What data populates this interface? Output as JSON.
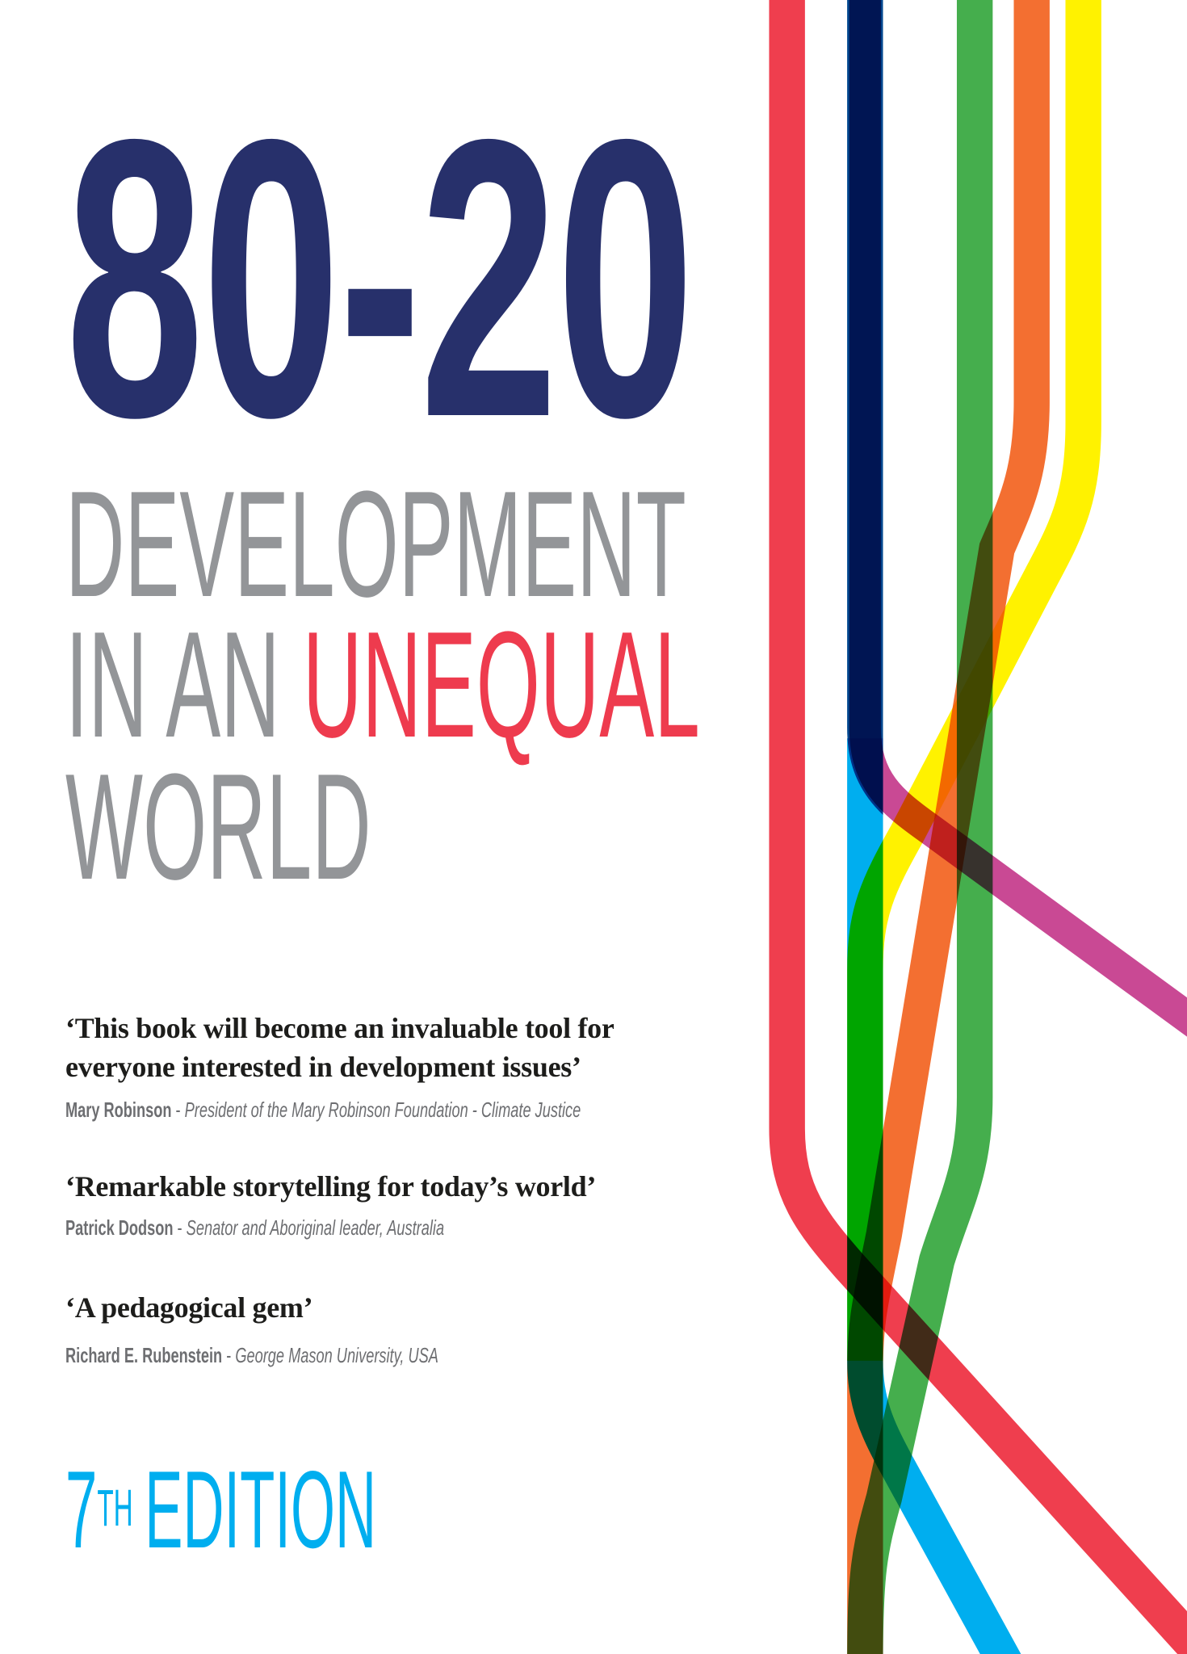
{
  "cover": {
    "title": "80-20",
    "subtitle_line1": "DEVELOPMENT",
    "subtitle_line2_a": "IN AN ",
    "subtitle_line2_b": "UNEQUAL",
    "subtitle_line3": "WORLD",
    "quotes": [
      {
        "lines": [
          "‘This book will become an invaluable tool for",
          "everyone interested in development issues’"
        ],
        "name": "Mary Robinson",
        "role": "President of the Mary Robinson Foundation - Climate Justice"
      },
      {
        "lines": [
          "‘Remarkable storytelling for today’s world’"
        ],
        "name": "Patrick Dodson",
        "role": "Senator and Aboriginal leader, Australia"
      },
      {
        "lines": [
          "‘A pedagogical gem’"
        ],
        "name": "Richard E. Rubenstein",
        "role": "George Mason University, USA"
      }
    ],
    "separator": " - ",
    "edition_number": "7",
    "edition_suffix": "TH",
    "edition_label": "EDITION"
  },
  "colors": {
    "title_navy": "#27306b",
    "subtitle_grey": "#939598",
    "accent_red": "#ee3b4e",
    "edition_cyan": "#00aeef",
    "stripes": [
      "#ef3e4e",
      "#00478f",
      "#00aeef",
      "#45ae4d",
      "#f36f31",
      "#fff200",
      "#c94994"
    ]
  }
}
